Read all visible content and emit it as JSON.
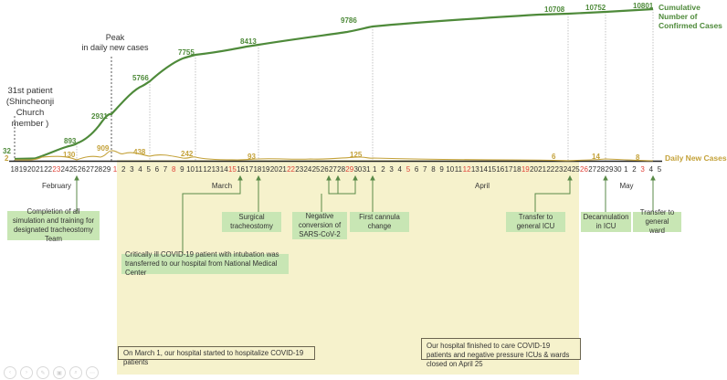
{
  "chart_data": {
    "type": "line",
    "title": "",
    "xlabel": "",
    "ylabel": "",
    "legend": [
      {
        "name": "Cumulative Number of Confirmed Cases",
        "color": "#4e8a3a"
      },
      {
        "name": "Daily New Cases",
        "color": "#c4a23a"
      }
    ],
    "months": [
      "February",
      "March",
      "April",
      "May"
    ],
    "x_ticks": [
      {
        "label": "18",
        "red": false
      },
      {
        "label": "19",
        "red": false
      },
      {
        "label": "20",
        "red": false
      },
      {
        "label": "21",
        "red": false
      },
      {
        "label": "22",
        "red": false
      },
      {
        "label": "23",
        "red": true
      },
      {
        "label": "24",
        "red": false
      },
      {
        "label": "25",
        "red": false
      },
      {
        "label": "26",
        "red": false
      },
      {
        "label": "27",
        "red": false
      },
      {
        "label": "28",
        "red": false
      },
      {
        "label": "29",
        "red": false
      },
      {
        "label": "1",
        "red": true
      },
      {
        "label": "2",
        "red": false
      },
      {
        "label": "3",
        "red": false
      },
      {
        "label": "4",
        "red": false
      },
      {
        "label": "5",
        "red": false
      },
      {
        "label": "6",
        "red": false
      },
      {
        "label": "7",
        "red": false
      },
      {
        "label": "8",
        "red": true
      },
      {
        "label": "9",
        "red": false
      },
      {
        "label": "10",
        "red": false
      },
      {
        "label": "11",
        "red": false
      },
      {
        "label": "12",
        "red": false
      },
      {
        "label": "13",
        "red": false
      },
      {
        "label": "14",
        "red": false
      },
      {
        "label": "15",
        "red": true
      },
      {
        "label": "16",
        "red": false
      },
      {
        "label": "17",
        "red": false
      },
      {
        "label": "18",
        "red": false
      },
      {
        "label": "19",
        "red": false
      },
      {
        "label": "20",
        "red": false
      },
      {
        "label": "21",
        "red": false
      },
      {
        "label": "22",
        "red": true
      },
      {
        "label": "23",
        "red": false
      },
      {
        "label": "24",
        "red": false
      },
      {
        "label": "25",
        "red": false
      },
      {
        "label": "26",
        "red": false
      },
      {
        "label": "27",
        "red": false
      },
      {
        "label": "28",
        "red": false
      },
      {
        "label": "29",
        "red": true
      },
      {
        "label": "30",
        "red": false
      },
      {
        "label": "31",
        "red": false
      },
      {
        "label": "1",
        "red": false
      },
      {
        "label": "2",
        "red": false
      },
      {
        "label": "3",
        "red": false
      },
      {
        "label": "4",
        "red": false
      },
      {
        "label": "5",
        "red": true
      },
      {
        "label": "6",
        "red": false
      },
      {
        "label": "7",
        "red": false
      },
      {
        "label": "8",
        "red": false
      },
      {
        "label": "9",
        "red": false
      },
      {
        "label": "10",
        "red": false
      },
      {
        "label": "11",
        "red": false
      },
      {
        "label": "12",
        "red": true
      },
      {
        "label": "13",
        "red": false
      },
      {
        "label": "14",
        "red": false
      },
      {
        "label": "15",
        "red": false
      },
      {
        "label": "16",
        "red": false
      },
      {
        "label": "17",
        "red": false
      },
      {
        "label": "18",
        "red": false
      },
      {
        "label": "19",
        "red": true
      },
      {
        "label": "20",
        "red": false
      },
      {
        "label": "21",
        "red": false
      },
      {
        "label": "22",
        "red": false
      },
      {
        "label": "23",
        "red": false
      },
      {
        "label": "24",
        "red": false
      },
      {
        "label": "25",
        "red": false
      },
      {
        "label": "26",
        "red": true
      },
      {
        "label": "27",
        "red": false
      },
      {
        "label": "28",
        "red": false
      },
      {
        "label": "29",
        "red": false
      },
      {
        "label": "30",
        "red": false
      },
      {
        "label": "1",
        "red": false
      },
      {
        "label": "2",
        "red": false
      },
      {
        "label": "3",
        "red": true
      },
      {
        "label": "4",
        "red": false
      },
      {
        "label": "5",
        "red": false
      }
    ],
    "series": [
      {
        "name": "Cumulative Number of Confirmed Cases",
        "labeled_points": [
          {
            "date": "Feb 18",
            "value": 32
          },
          {
            "date": "Feb 25",
            "value": 893
          },
          {
            "date": "Feb 29",
            "value": 2931
          },
          {
            "date": "Mar 5",
            "value": 5766
          },
          {
            "date": "Mar 11",
            "value": 7755
          },
          {
            "date": "Mar 18",
            "value": 8413
          },
          {
            "date": "Mar 31",
            "value": 9786
          },
          {
            "date": "Apr 24",
            "value": 10708
          },
          {
            "date": "Apr 28",
            "value": 10752
          },
          {
            "date": "May 4",
            "value": 10801
          }
        ]
      },
      {
        "name": "Daily New Cases",
        "labeled_points": [
          {
            "date": "Feb 18",
            "value": 2
          },
          {
            "date": "Feb 25",
            "value": 130
          },
          {
            "date": "Feb 29",
            "value": 909
          },
          {
            "date": "Mar 5",
            "value": 438
          },
          {
            "date": "Mar 11",
            "value": 242
          },
          {
            "date": "Mar 18",
            "value": 93
          },
          {
            "date": "Mar 29",
            "value": 125
          },
          {
            "date": "Apr 22",
            "value": 6
          },
          {
            "date": "Apr 27",
            "value": 14
          },
          {
            "date": "May 2",
            "value": 8
          }
        ]
      }
    ],
    "annotations": {
      "first_patient": "31st patient (Shincheonji Church member )",
      "peak": "Peak in daily new cases",
      "period_start": "On March  1, our hospital started to hospitalize COVID-19 patients",
      "period_end": "Our hospital finished to care COVID-19 patients and negative pressure ICUs & wards closed on April 25"
    },
    "grid": false
  },
  "labels": {
    "first_patient": [
      "31st patient",
      "(Shincheonji",
      "Church member )"
    ],
    "peak": [
      "Peak",
      "in daily new cases"
    ],
    "legend_cum": [
      "Cumulative Number of",
      "Confirmed Cases"
    ],
    "legend_daily": "Daily New Cases",
    "cum": {
      "p32": "32",
      "p893": "893",
      "p2931": "2931",
      "p5766": "5766",
      "p7755": "7755",
      "p8413": "8413",
      "p9786": "9786",
      "p10708": "10708",
      "p10752": "10752",
      "p10801": "10801"
    },
    "daily": {
      "p2": "2",
      "p130": "130",
      "p909": "909",
      "p438": "438",
      "p242": "242",
      "p93": "93",
      "p125": "125",
      "p6": "6",
      "p14": "14",
      "p8": "8"
    }
  },
  "events": {
    "simulation": "Completion of all simulation and training for designated tracheostomy Team",
    "transfer_in": "Critically ill COVID-19 patient with intubation was transferred to our hospital from National Medical Center",
    "tracheostomy": "Surgical tracheostomy",
    "negative": "Negative conversion of SARS-CoV-2",
    "cannula": "First cannula change",
    "general_icu": "Transfer to general ICU",
    "decannulation": "Decannulation in ICU",
    "general_ward": "Transfer to general ward"
  },
  "notes": {
    "start": "On March  1, our hospital started to hospitalize COVID-19 patients",
    "end": "Our hospital finished to care COVID-19 patients and negative pressure ICUs & wards closed on April 25"
  },
  "viewer_controls": [
    "previous",
    "next",
    "pen",
    "slides",
    "zoom",
    "more"
  ]
}
